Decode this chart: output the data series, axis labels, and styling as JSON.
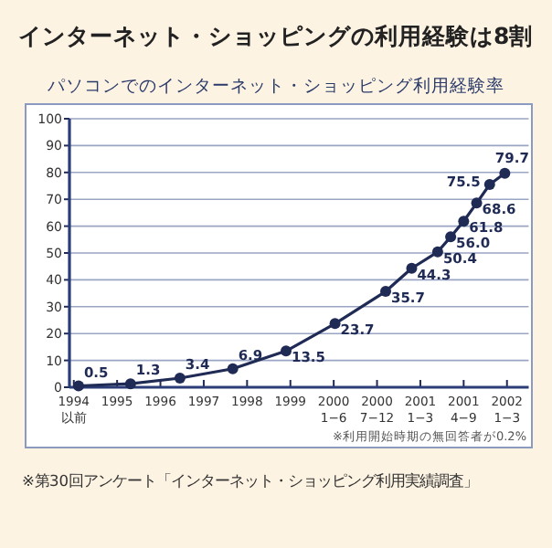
{
  "chart_data": {
    "type": "line",
    "title": "インターネット・ショッピングの利用経験は8割",
    "subtitle": "パソコンでのインターネット・ショッピング利用経験率",
    "x": [
      1994.11,
      1995.31,
      1996.45,
      1997.67,
      1998.9,
      2000.03,
      2001.2,
      2001.8,
      2002.4,
      2002.7,
      2003.0,
      2003.3,
      2003.6,
      2003.95
    ],
    "series": [
      {
        "color": "#1f2a55",
        "values": [
          0.5,
          1.3,
          3.4,
          6.9,
          13.5,
          23.7,
          35.7,
          44.3,
          50.4,
          56.0,
          61.8,
          68.6,
          75.5,
          79.7
        ],
        "value_labels": [
          "0.5",
          "1.3",
          "3.4",
          "6.9",
          "13.5",
          "23.7",
          "35.7",
          "44.3",
          "50.4",
          "56.0",
          "61.8",
          "68.6",
          "75.5",
          "79.7"
        ]
      }
    ],
    "xlim": [
      1993.9,
      2004.5
    ],
    "xticks": [
      {
        "value": 1994,
        "label": "1994\n以前"
      },
      1995,
      1996,
      1997,
      1998,
      1999,
      {
        "value": 2000,
        "label": "2000\n1−6"
      },
      {
        "value": 2001,
        "label": "2000\n7−12"
      },
      {
        "value": 2002,
        "label": "2001\n1−3"
      },
      {
        "value": 2003,
        "label": "2001\n4−9"
      },
      {
        "value": 2004,
        "label": "2002\n1−3"
      }
    ],
    "ylim": [
      0,
      100
    ],
    "yticks": [
      0,
      10,
      20,
      30,
      40,
      50,
      60,
      70,
      80,
      90,
      100
    ],
    "grid": "y",
    "marker": "circle",
    "line_style": "solid",
    "annotations": [
      "※利用開始時期の無回答者が0.2%",
      "※第30回アンケート「インターネット・ショッピング利用実績調査」"
    ]
  }
}
